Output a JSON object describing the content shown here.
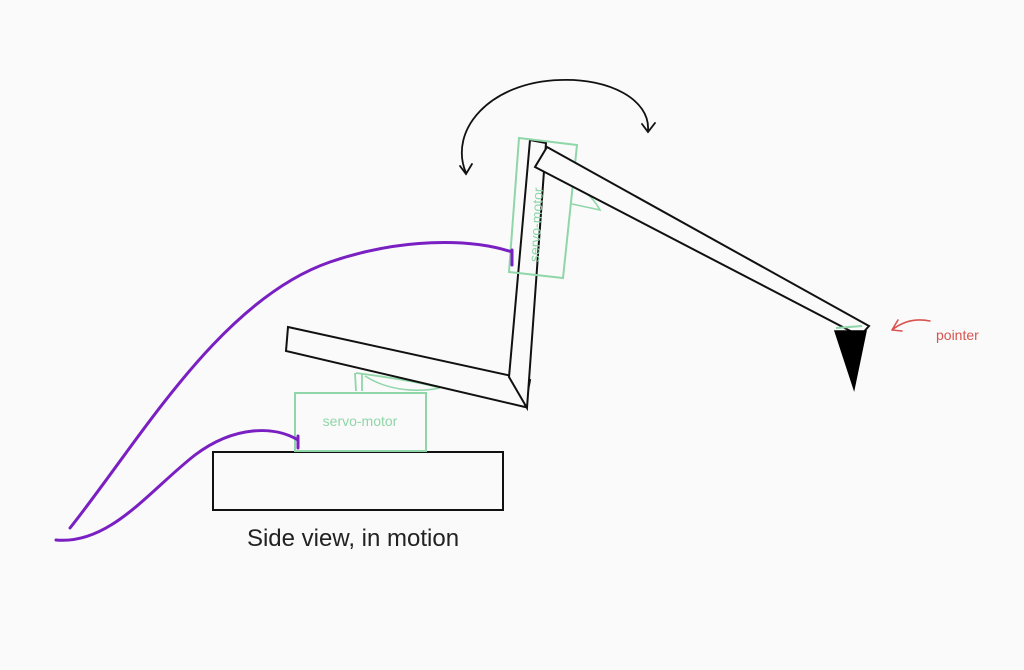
{
  "caption": "Side view, in motion",
  "labels": {
    "servo_base": "servo-motor",
    "servo_elbow": "servo-motor",
    "pointer": "pointer"
  },
  "colors": {
    "background": "#fafafa",
    "outline": "#111111",
    "servo": "#8fd6a8",
    "servo_text": "#8fd6a8",
    "cable": "#7a1fc2",
    "pointer_label": "#d9534f",
    "pointer_tip": "#000000"
  },
  "icons": {
    "rotation": "curved-double-arrow-icon",
    "pointer_arrow": "curved-arrow-left-icon"
  }
}
